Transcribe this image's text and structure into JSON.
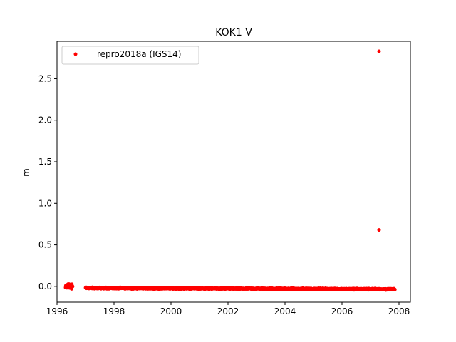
{
  "chart_data": {
    "type": "scatter",
    "title": "KOK1 V",
    "xlabel": "",
    "ylabel": "m",
    "xlim": [
      1996.0,
      2008.4
    ],
    "ylim": [
      -0.19,
      2.95
    ],
    "xticks": [
      1996,
      1998,
      2000,
      2002,
      2004,
      2006,
      2008
    ],
    "yticks": [
      0.0,
      0.5,
      1.0,
      1.5,
      2.0,
      2.5
    ],
    "ytick_labels": [
      "0.0",
      "0.5",
      "1.0",
      "1.5",
      "2.0",
      "2.5"
    ],
    "grid": false,
    "legend": {
      "placement": "top-left",
      "entries": [
        "repro2018a (IGS14)"
      ]
    },
    "series": [
      {
        "name": "repro2018a (IGS14)",
        "color": "#ff0000",
        "marker": "circle",
        "band": {
          "x_start": 1997.0,
          "x_end": 2007.85,
          "y_start": -0.02,
          "y_end": -0.035,
          "scatter": 0.012,
          "note_points_per_year": 120
        },
        "cluster": {
          "x_start": 1996.3,
          "x_end": 1996.55,
          "y_center": 0.0,
          "scatter": 0.035
        },
        "outliers": [
          {
            "x": 2007.3,
            "y": 2.83
          },
          {
            "x": 2007.3,
            "y": 0.68
          }
        ]
      }
    ]
  }
}
